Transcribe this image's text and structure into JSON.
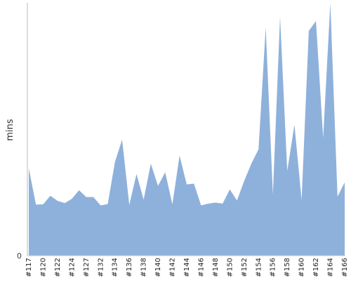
{
  "chart_data": {
    "type": "area",
    "title": "",
    "xlabel": "",
    "ylabel": "mins",
    "ylim": [
      0,
      100
    ],
    "y_tick_labels": [
      "0"
    ],
    "x_tick_labels": [
      "#117",
      "#120",
      "#122",
      "#124",
      "#127",
      "#132",
      "#134",
      "#136",
      "#138",
      "#140",
      "#142",
      "#144",
      "#146",
      "#148",
      "#150",
      "#152",
      "#154",
      "#156",
      "#158",
      "#160",
      "#162",
      "#164",
      "#166"
    ],
    "x_tick_indices": [
      0,
      2,
      4,
      6,
      8,
      10,
      12,
      14,
      16,
      18,
      20,
      22,
      24,
      26,
      28,
      30,
      32,
      34,
      36,
      38,
      40,
      42,
      44
    ],
    "grid": false,
    "color": "#8eb1db",
    "values": [
      34.5,
      20.2,
      20.3,
      23.7,
      21.7,
      20.8,
      22.5,
      25.9,
      23.2,
      23.2,
      19.9,
      20.4,
      37.1,
      45.9,
      20.1,
      32.3,
      22.2,
      36.4,
      27.6,
      33.0,
      20.3,
      39.6,
      28.2,
      28.5,
      19.9,
      20.6,
      21.0,
      20.6,
      26.2,
      21.8,
      29.6,
      36.4,
      42.1,
      90.3,
      24.3,
      94.5,
      33.5,
      51.8,
      22.1,
      88.9,
      92.8,
      46.6,
      100.0,
      23.4,
      29.0
    ]
  }
}
